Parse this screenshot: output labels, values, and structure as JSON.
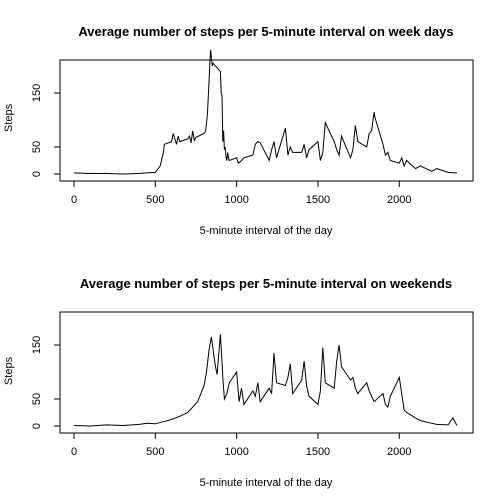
{
  "chart_data": [
    {
      "type": "line",
      "title": "Average number of steps per 5-minute interval on week days",
      "xlabel": "5-minute interval of the day",
      "ylabel": "Steps",
      "xlim": [
        0,
        2355
      ],
      "ylim": [
        0,
        230
      ],
      "xticks": [
        "0",
        "500",
        "1000",
        "1500",
        "2000"
      ],
      "yticks": [
        "0",
        "50",
        "150"
      ],
      "grid": false,
      "series": [
        {
          "x": [
            0,
            100,
            200,
            300,
            400,
            450,
            500,
            530,
            550,
            555,
            600,
            610,
            630,
            640,
            650,
            700,
            710,
            720,
            730,
            740,
            750,
            800,
            810,
            820,
            830,
            835,
            840,
            845,
            850,
            855,
            900,
            905,
            910,
            915,
            920,
            925,
            930,
            935,
            940,
            945,
            950,
            955,
            1000,
            1010,
            1030,
            1045,
            1100,
            1115,
            1130,
            1145,
            1200,
            1215,
            1230,
            1245,
            1300,
            1315,
            1330,
            1345,
            1400,
            1415,
            1430,
            1445,
            1500,
            1515,
            1530,
            1545,
            1600,
            1615,
            1630,
            1645,
            1700,
            1715,
            1730,
            1745,
            1800,
            1815,
            1830,
            1845,
            1850,
            1900,
            1915,
            1930,
            1945,
            2000,
            2015,
            2030,
            2045,
            2100,
            2130,
            2200,
            2230,
            2300,
            2355
          ],
          "y": [
            2,
            1,
            1,
            0,
            1,
            2,
            3,
            15,
            40,
            55,
            60,
            75,
            55,
            70,
            60,
            65,
            70,
            58,
            80,
            62,
            68,
            75,
            80,
            110,
            170,
            205,
            230,
            215,
            200,
            205,
            190,
            150,
            145,
            60,
            80,
            45,
            50,
            30,
            25,
            40,
            30,
            25,
            30,
            20,
            25,
            30,
            35,
            55,
            60,
            58,
            25,
            45,
            60,
            30,
            85,
            35,
            50,
            40,
            40,
            55,
            30,
            45,
            60,
            25,
            40,
            95,
            60,
            45,
            35,
            70,
            30,
            45,
            90,
            60,
            50,
            75,
            80,
            115,
            105,
            55,
            35,
            40,
            25,
            20,
            30,
            15,
            25,
            10,
            15,
            5,
            10,
            3,
            2
          ]
        }
      ]
    },
    {
      "type": "line",
      "title": "Average number of steps per 5-minute interval on weekends",
      "xlabel": "5-minute interval of the day",
      "ylabel": "Steps",
      "xlim": [
        0,
        2355
      ],
      "ylim": [
        0,
        230
      ],
      "xticks": [
        "0",
        "500",
        "1000",
        "1500",
        "2000"
      ],
      "yticks": [
        "0",
        "50",
        "150"
      ],
      "grid": false,
      "series": [
        {
          "x": [
            0,
            100,
            200,
            300,
            400,
            450,
            500,
            550,
            600,
            650,
            700,
            730,
            760,
            780,
            800,
            815,
            830,
            845,
            860,
            870,
            880,
            900,
            910,
            915,
            925,
            940,
            955,
            1000,
            1015,
            1030,
            1045,
            1100,
            1115,
            1130,
            1145,
            1200,
            1215,
            1230,
            1245,
            1300,
            1315,
            1330,
            1345,
            1400,
            1415,
            1430,
            1445,
            1500,
            1515,
            1530,
            1545,
            1600,
            1615,
            1630,
            1645,
            1700,
            1715,
            1730,
            1745,
            1800,
            1815,
            1830,
            1845,
            1900,
            1915,
            1930,
            1945,
            2000,
            2015,
            2030,
            2045,
            2100,
            2130,
            2200,
            2230,
            2300,
            2330,
            2355
          ],
          "y": [
            1,
            0,
            2,
            1,
            3,
            5,
            4,
            8,
            12,
            18,
            25,
            35,
            45,
            60,
            75,
            100,
            140,
            165,
            130,
            110,
            95,
            170,
            120,
            90,
            50,
            60,
            80,
            100,
            45,
            70,
            40,
            65,
            55,
            80,
            45,
            70,
            60,
            135,
            80,
            75,
            90,
            115,
            60,
            85,
            120,
            75,
            55,
            40,
            65,
            145,
            80,
            70,
            120,
            150,
            110,
            85,
            90,
            70,
            60,
            80,
            65,
            55,
            45,
            60,
            40,
            35,
            55,
            90,
            60,
            30,
            25,
            15,
            10,
            5,
            3,
            2,
            15,
            1
          ]
        }
      ]
    }
  ]
}
